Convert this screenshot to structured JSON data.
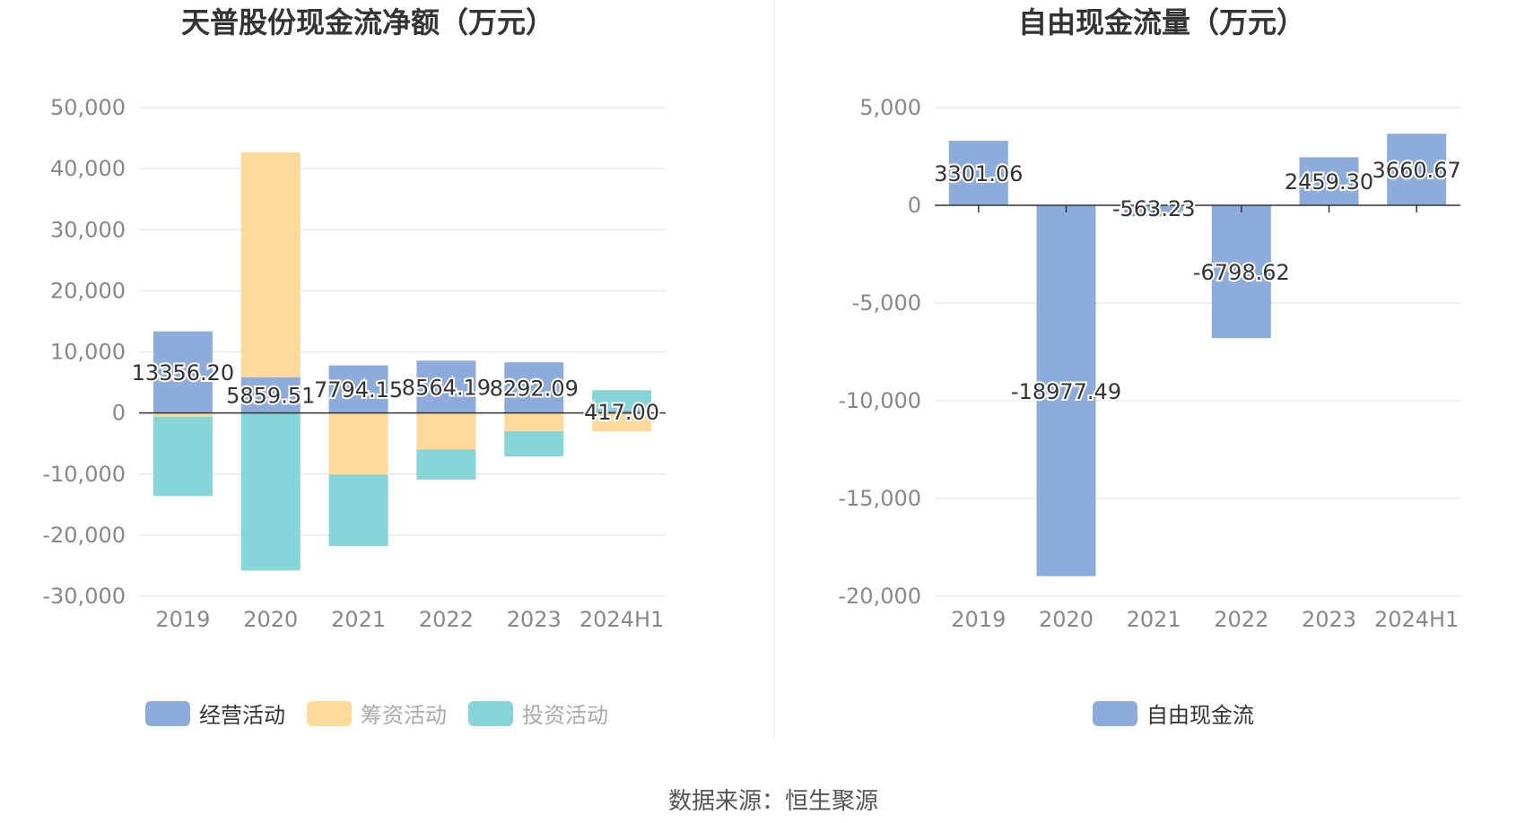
{
  "chart_data": [
    {
      "type": "bar",
      "stacked": true,
      "title": "天普股份现金流净额（万元）",
      "categories": [
        "2019",
        "2020",
        "2021",
        "2022",
        "2023",
        "2024H1"
      ],
      "ylim": [
        -30000,
        50000
      ],
      "yticks": [
        "50,000",
        "40,000",
        "30,000",
        "20,000",
        "10,000",
        "0",
        "-10,000",
        "-20,000",
        "-30,000"
      ],
      "ytick_values": [
        50000,
        40000,
        30000,
        20000,
        10000,
        0,
        -10000,
        -20000,
        -30000
      ],
      "grid": true,
      "legend_position": "bottom",
      "series": [
        {
          "name": "经营活动",
          "color": "#8eacdb",
          "values": [
            13356.2,
            5859.51,
            7794.15,
            8564.19,
            8292.09,
            417.0
          ]
        },
        {
          "name": "筹资活动",
          "color": "#fdd99a",
          "values": [
            -600,
            36800,
            -10100,
            -6000,
            -3000,
            -3000
          ]
        },
        {
          "name": "投资活动",
          "color": "#86d5d8",
          "values": [
            -13000,
            -25800,
            -11700,
            -4900,
            -4100,
            3300
          ]
        }
      ],
      "data_labels": [
        "13356.20",
        "5859.51",
        "7794.15",
        "8564.19",
        "8292.09",
        "417.00"
      ]
    },
    {
      "type": "bar",
      "title": "自由现金流量（万元）",
      "categories": [
        "2019",
        "2020",
        "2021",
        "2022",
        "2023",
        "2024H1"
      ],
      "ylim": [
        -20000,
        5000
      ],
      "yticks": [
        "5,000",
        "0",
        "-5,000",
        "-10,000",
        "-15,000",
        "-20,000"
      ],
      "ytick_values": [
        5000,
        0,
        -5000,
        -10000,
        -15000,
        -20000
      ],
      "grid": true,
      "legend_position": "bottom",
      "series": [
        {
          "name": "自由现金流",
          "color": "#8eacdb",
          "values": [
            3301.06,
            -18977.49,
            -563.23,
            -6798.62,
            2459.3,
            3660.67
          ]
        }
      ],
      "data_labels": [
        "3301.06",
        "-18977.49",
        "-563.23",
        "-6798.62",
        "2459.30",
        "3660.67"
      ]
    }
  ],
  "source": "数据来源：恒生聚源"
}
